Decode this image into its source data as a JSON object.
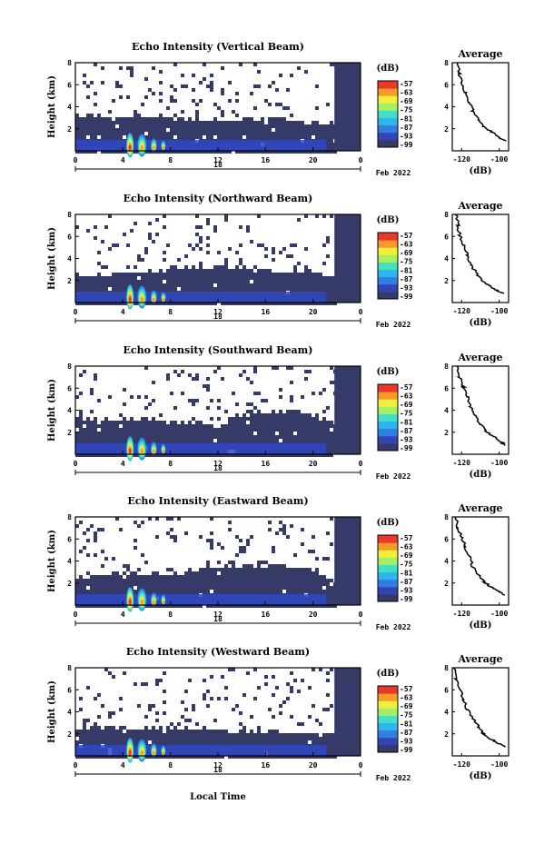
{
  "colors": {
    "background": "#ffffff",
    "dark_echo": "#353a67",
    "colormap": [
      "#353a67",
      "#3344b4",
      "#2f7ee0",
      "#2cb6ec",
      "#45e0c4",
      "#a6ef62",
      "#f1ef3a",
      "#f79a2a",
      "#e8392a"
    ]
  },
  "shared": {
    "colorbar_unit": "(dB)",
    "colorbar_ticks": [
      "-57",
      "-63",
      "-69",
      "-75",
      "-81",
      "-87",
      "-93",
      "-99"
    ],
    "avg_title": "Average",
    "avg_xlabel": "(dB)",
    "avg_xticks": [
      "-120",
      "-100"
    ],
    "avg_yticks": [
      "2",
      "4",
      "6",
      "8"
    ],
    "ylabel": "Height (km)",
    "xticks": [
      "0",
      "4",
      "8",
      "12",
      "16",
      "20",
      "0"
    ],
    "day_label": "18",
    "month_label": "Feb 2022",
    "xlabel": "Local Time"
  },
  "chart_data": [
    {
      "type": "heatmap",
      "title": "Echo Intensity (Vertical Beam)",
      "x_range_hours": [
        0,
        24
      ],
      "y_range_km": [
        0,
        8
      ],
      "color_range_db": [
        -99,
        -57
      ],
      "dense_layer_top_km": [
        [
          0,
          3.2
        ],
        [
          3,
          3.1
        ],
        [
          8,
          3.1
        ],
        [
          12,
          2.9
        ],
        [
          16,
          2.8
        ],
        [
          20,
          2.7
        ],
        [
          22,
          2.4
        ]
      ],
      "instrument_gap_hours": [
        21.8,
        24
      ],
      "profile": {
        "type": "line",
        "x_db": [
          -122,
          -121,
          -120,
          -118,
          -116,
          -114,
          -111,
          -108,
          -104,
          -100,
          -97
        ],
        "y_km": [
          8,
          7,
          6.2,
          5.3,
          4.4,
          3.6,
          2.8,
          2.2,
          1.7,
          1.2,
          0.9
        ]
      }
    },
    {
      "type": "heatmap",
      "title": "Echo Intensity (Northward Beam)",
      "x_range_hours": [
        0,
        24
      ],
      "y_range_km": [
        0,
        8
      ],
      "color_range_db": [
        -99,
        -57
      ],
      "dense_layer_top_km": [
        [
          0,
          2.6
        ],
        [
          3,
          2.7
        ],
        [
          8,
          3.1
        ],
        [
          12,
          3.2
        ],
        [
          16,
          3.0
        ],
        [
          20,
          2.9
        ],
        [
          22,
          2.0
        ]
      ],
      "instrument_gap_hours": [
        21.8,
        24
      ],
      "profile": {
        "type": "line",
        "x_db": [
          -123,
          -122,
          -121,
          -119,
          -117,
          -115,
          -112,
          -109,
          -105,
          -101,
          -98
        ],
        "y_km": [
          8,
          7,
          6.1,
          5.2,
          4.3,
          3.4,
          2.6,
          2.0,
          1.5,
          1.1,
          0.8
        ]
      }
    },
    {
      "type": "heatmap",
      "title": "Echo Intensity (Southward Beam)",
      "x_range_hours": [
        0,
        24
      ],
      "y_range_km": [
        0,
        8
      ],
      "color_range_db": [
        -99,
        -57
      ],
      "dense_layer_top_km": [
        [
          0,
          3.4
        ],
        [
          3,
          3.3
        ],
        [
          8,
          3.0
        ],
        [
          12,
          2.6
        ],
        [
          14,
          3.8
        ],
        [
          18,
          3.9
        ],
        [
          20,
          3.6
        ],
        [
          22,
          2.6
        ]
      ],
      "instrument_gap_hours": [
        21.8,
        24
      ],
      "profile": {
        "type": "line",
        "x_db": [
          -122,
          -121,
          -119,
          -117,
          -115,
          -113,
          -110,
          -107,
          -103,
          -99,
          -96
        ],
        "y_km": [
          8,
          7,
          6.1,
          5.2,
          4.3,
          3.5,
          2.7,
          2.1,
          1.6,
          1.1,
          0.8
        ]
      }
    },
    {
      "type": "heatmap",
      "title": "Echo Intensity (Eastward Beam)",
      "x_range_hours": [
        0,
        24
      ],
      "y_range_km": [
        0,
        8
      ],
      "color_range_db": [
        -99,
        -57
      ],
      "dense_layer_top_km": [
        [
          0,
          2.6
        ],
        [
          3,
          2.8
        ],
        [
          8,
          2.9
        ],
        [
          12,
          3.4
        ],
        [
          16,
          3.6
        ],
        [
          20,
          3.3
        ],
        [
          22,
          2.2
        ]
      ],
      "instrument_gap_hours": [
        21.8,
        24
      ],
      "profile": {
        "type": "line",
        "x_db": [
          -123,
          -122,
          -120,
          -118,
          -116,
          -114,
          -111,
          -108,
          -104,
          -100,
          -97
        ],
        "y_km": [
          8,
          7,
          6.1,
          5.3,
          4.4,
          3.5,
          2.7,
          2.1,
          1.6,
          1.2,
          0.9
        ]
      }
    },
    {
      "type": "heatmap",
      "title": "Echo Intensity (Westward Beam)",
      "x_range_hours": [
        0,
        24
      ],
      "y_range_km": [
        0,
        8
      ],
      "color_range_db": [
        -99,
        -57
      ],
      "dense_layer_top_km": [
        [
          0,
          2.4
        ],
        [
          3,
          2.5
        ],
        [
          8,
          2.6
        ],
        [
          12,
          2.4
        ],
        [
          16,
          2.2
        ],
        [
          20,
          2.0
        ],
        [
          22,
          1.8
        ]
      ],
      "instrument_gap_hours": [
        21.8,
        24
      ],
      "profile": {
        "type": "line",
        "x_db": [
          -124,
          -123,
          -121,
          -119,
          -117,
          -114,
          -111,
          -108,
          -104,
          -100,
          -96
        ],
        "y_km": [
          8,
          7,
          6.0,
          5.1,
          4.2,
          3.4,
          2.6,
          2.0,
          1.5,
          1.1,
          0.8
        ]
      }
    }
  ]
}
